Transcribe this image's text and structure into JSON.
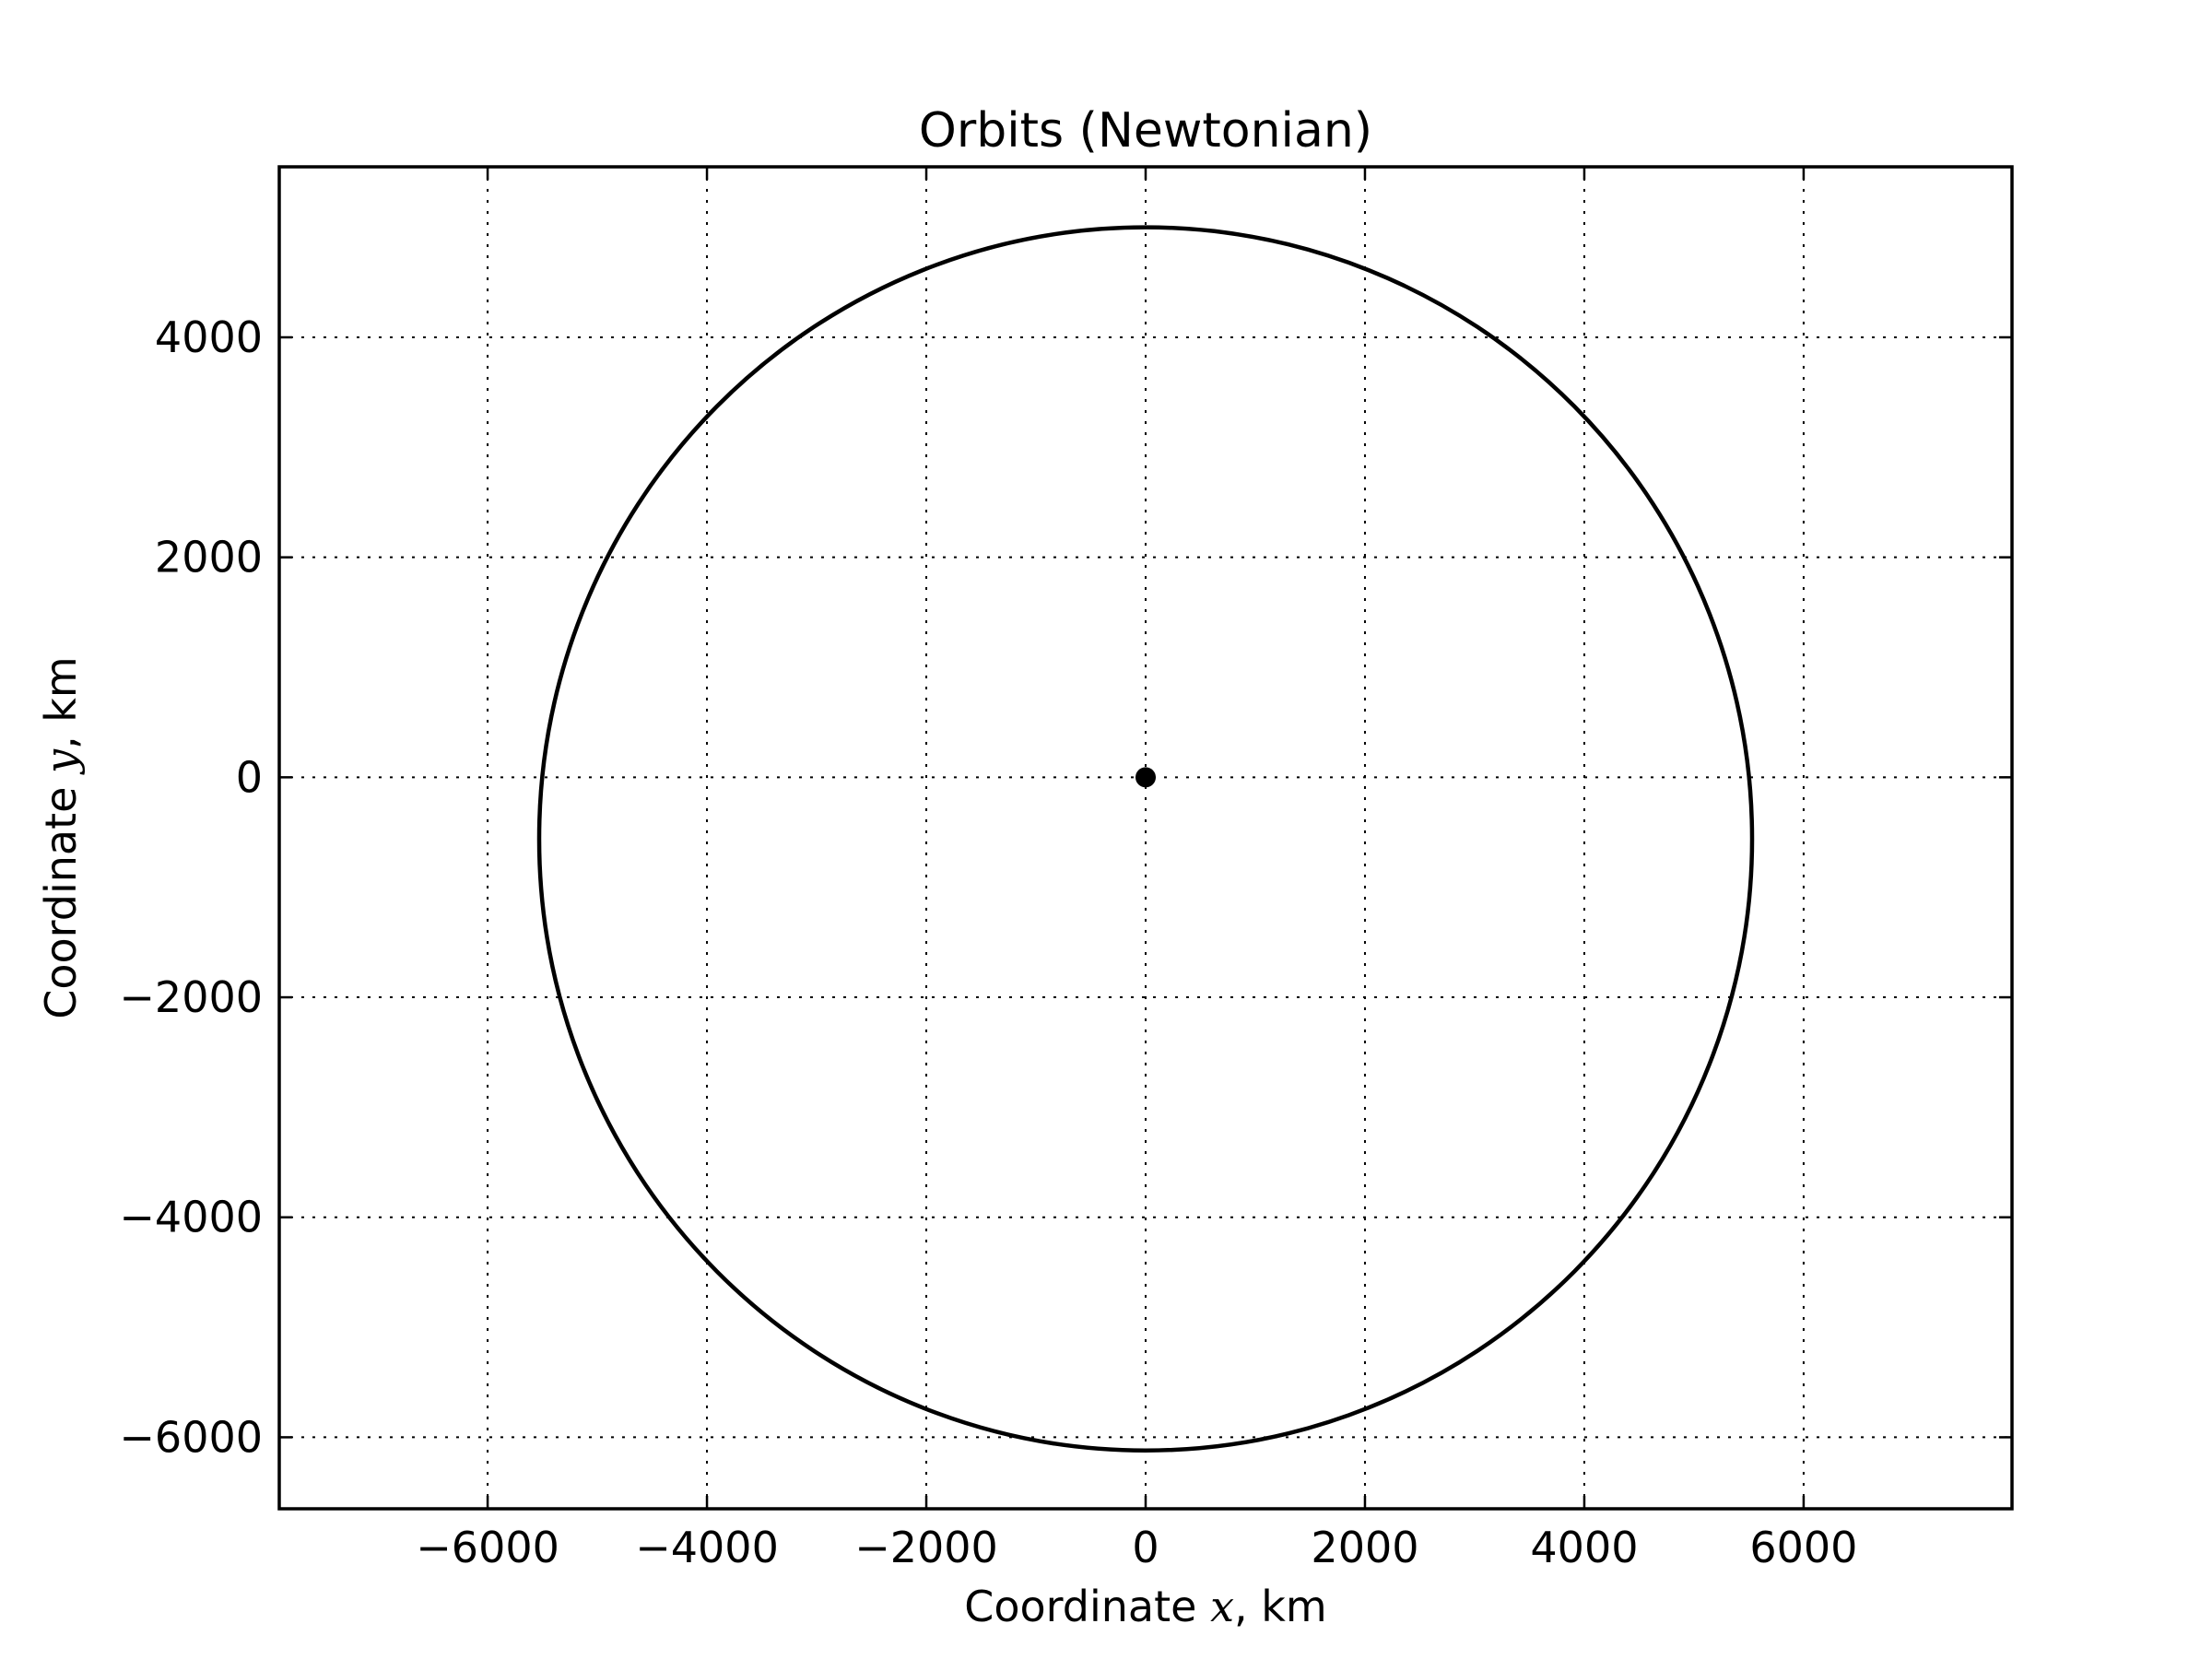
{
  "chart_data": {
    "type": "line",
    "title": "Orbits (Newtonian)",
    "xlabel_prefix": "Coordinate ",
    "xlabel_var": "x",
    "xlabel_suffix": ", km",
    "ylabel_prefix": "Coordinate ",
    "ylabel_var": "y",
    "ylabel_suffix": ", km",
    "xlim": [
      -7900,
      7900
    ],
    "ylim": [
      -6650,
      5550
    ],
    "xticks": [
      -6000,
      -4000,
      -2000,
      0,
      2000,
      4000,
      6000
    ],
    "xtick_labels": [
      "−6000",
      "−4000",
      "−2000",
      "0",
      "2000",
      "4000",
      "6000"
    ],
    "yticks": [
      -6000,
      -4000,
      -2000,
      0,
      2000,
      4000
    ],
    "ytick_labels": [
      "−6000",
      "−4000",
      "−2000",
      "0",
      "2000",
      "4000"
    ],
    "grid": true,
    "series": [
      {
        "kind": "ellipse-orbit",
        "center": [
          0,
          -560
        ],
        "semi_axis_x": 5530,
        "semi_axis_y": 5560,
        "points": [
          [
            -5530,
            -560
          ],
          [
            0,
            5000
          ],
          [
            5530,
            -560
          ],
          [
            0,
            -6120
          ]
        ]
      },
      {
        "kind": "point",
        "points": [
          [
            0,
            0
          ]
        ]
      }
    ],
    "colors": {
      "line": "#000000",
      "marker": "#000000"
    }
  }
}
